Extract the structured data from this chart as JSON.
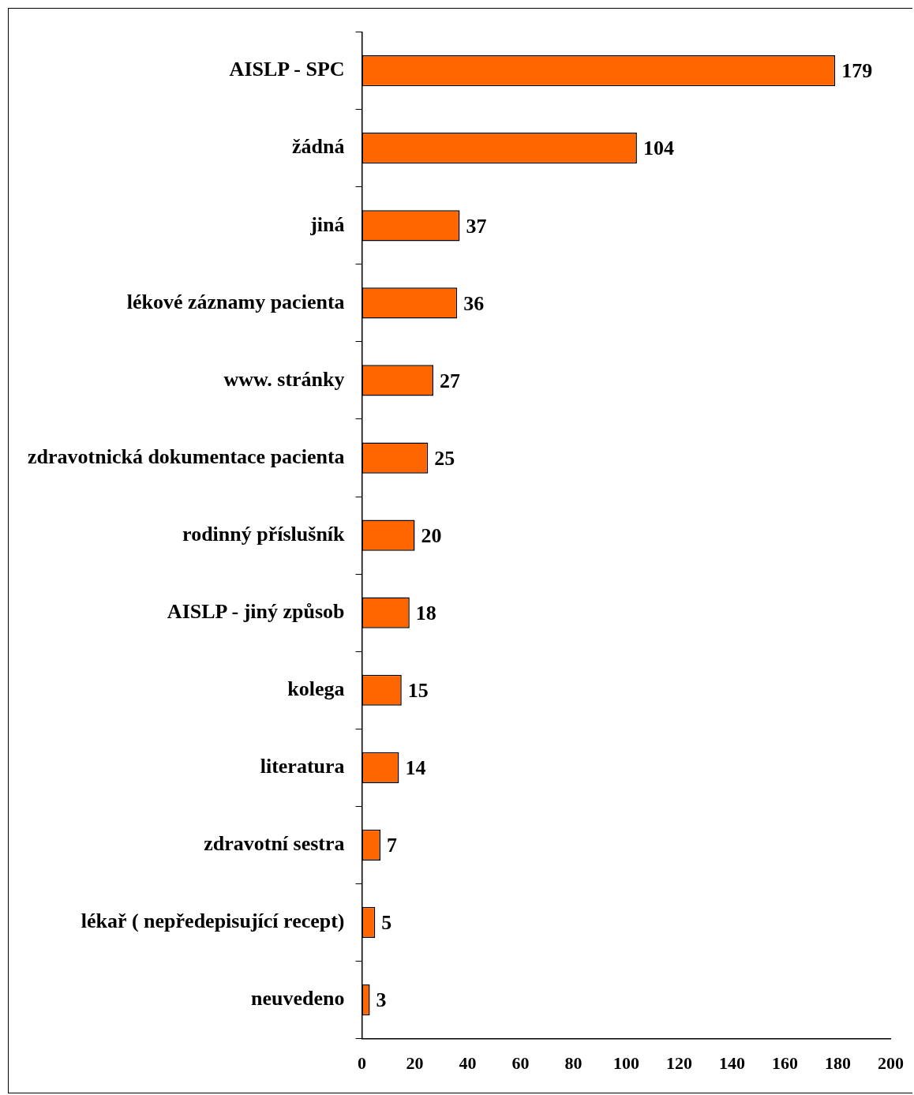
{
  "chart_data": {
    "type": "bar",
    "orientation": "horizontal",
    "categories": [
      "AISLP - SPC",
      "žádná",
      "jiná",
      "lékové záznamy pacienta",
      "www. stránky",
      "zdravotnická dokumentace pacienta",
      "rodinný příslušník",
      "AISLP - jiný způsob",
      "kolega",
      "literatura",
      "zdravotní sestra",
      "lékař ( nepředepisující recept)",
      "neuvedeno"
    ],
    "values": [
      179,
      104,
      37,
      36,
      27,
      25,
      20,
      18,
      15,
      14,
      7,
      5,
      3
    ],
    "color": "#ff6600",
    "xlim": [
      0,
      200
    ],
    "xticks": [
      0,
      20,
      40,
      60,
      80,
      100,
      120,
      140,
      160,
      180,
      200
    ],
    "grid": false,
    "legend": false,
    "data_labels": true
  }
}
